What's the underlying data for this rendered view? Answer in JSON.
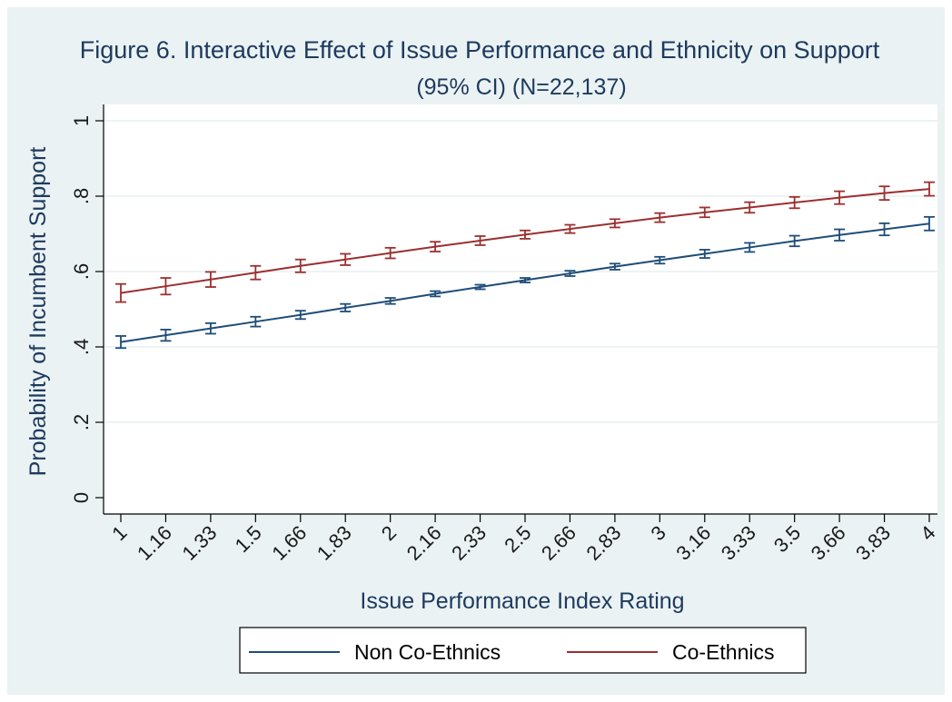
{
  "chart_data": {
    "type": "line",
    "title": "Figure 6. Interactive Effect of Issue Performance and Ethnicity on Support",
    "subtitle": "(95% CI) (N=22,137)",
    "xlabel": "Issue Performance Index Rating",
    "ylabel": "Probability of Incumbent Support",
    "ylim": [
      0,
      1
    ],
    "y_ticks": [
      0,
      0.2,
      0.4,
      0.6,
      0.8,
      1
    ],
    "y_tick_labels": [
      "0",
      ".2",
      ".4",
      ".6",
      ".8",
      "1"
    ],
    "categories": [
      "1",
      "1.16",
      "1.33",
      "1.5",
      "1.66",
      "1.83",
      "2",
      "2.16",
      "2.33",
      "2.5",
      "2.66",
      "2.83",
      "3",
      "3.16",
      "3.33",
      "3.5",
      "3.66",
      "3.83",
      "4"
    ],
    "grid": true,
    "legend_position": "bottom",
    "series": [
      {
        "name": "Non Co-Ethnics",
        "color": "#1e4d78",
        "values": [
          0.413,
          0.431,
          0.449,
          0.467,
          0.485,
          0.504,
          0.522,
          0.541,
          0.559,
          0.577,
          0.595,
          0.613,
          0.63,
          0.647,
          0.664,
          0.681,
          0.697,
          0.712,
          0.727
        ],
        "ci_lower": [
          0.397,
          0.416,
          0.435,
          0.454,
          0.474,
          0.494,
          0.514,
          0.534,
          0.553,
          0.571,
          0.588,
          0.605,
          0.621,
          0.636,
          0.652,
          0.667,
          0.682,
          0.696,
          0.709
        ],
        "ci_upper": [
          0.429,
          0.446,
          0.463,
          0.48,
          0.496,
          0.514,
          0.53,
          0.548,
          0.565,
          0.583,
          0.602,
          0.621,
          0.639,
          0.658,
          0.676,
          0.695,
          0.712,
          0.728,
          0.745
        ]
      },
      {
        "name": "Co-Ethnics",
        "color": "#9c2f2f",
        "values": [
          0.543,
          0.561,
          0.579,
          0.597,
          0.615,
          0.632,
          0.649,
          0.666,
          0.682,
          0.698,
          0.713,
          0.728,
          0.743,
          0.757,
          0.77,
          0.783,
          0.796,
          0.808,
          0.819
        ],
        "ci_lower": [
          0.519,
          0.539,
          0.559,
          0.579,
          0.598,
          0.617,
          0.635,
          0.653,
          0.67,
          0.687,
          0.702,
          0.717,
          0.731,
          0.744,
          0.756,
          0.768,
          0.779,
          0.79,
          0.801
        ],
        "ci_upper": [
          0.567,
          0.583,
          0.599,
          0.615,
          0.632,
          0.647,
          0.663,
          0.679,
          0.694,
          0.709,
          0.724,
          0.739,
          0.755,
          0.77,
          0.784,
          0.798,
          0.813,
          0.826,
          0.837
        ]
      }
    ]
  },
  "colors": {
    "background": "#eaf2f3",
    "plot_area": "#ffffff",
    "grid": "#e8eff0",
    "title": "#1e3a5f"
  }
}
